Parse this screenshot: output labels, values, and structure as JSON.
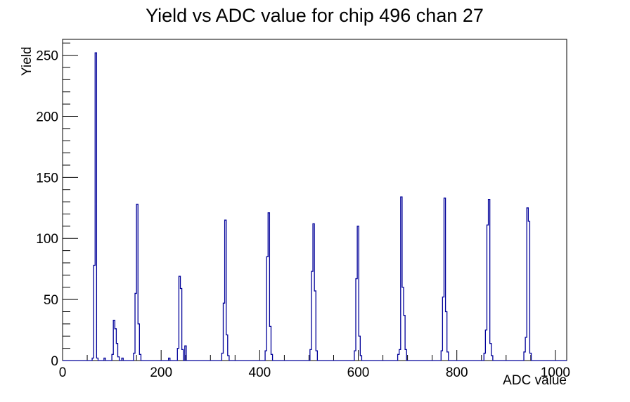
{
  "page": {
    "background": "#ffffff"
  },
  "chart_data": {
    "type": "histogram",
    "title": "Yield vs ADC value for chip 496 chan 27",
    "xlabel": "ADC value",
    "ylabel": "Yield",
    "xlim": [
      0,
      1023
    ],
    "ylim": [
      0,
      263
    ],
    "x_major_ticks": [
      0,
      200,
      400,
      600,
      800,
      1000
    ],
    "x_tick_labels": [
      "0",
      "200",
      "400",
      "600",
      "800",
      "1000"
    ],
    "x_minor_step": 50,
    "y_major_ticks": [
      0,
      50,
      100,
      150,
      200,
      250
    ],
    "y_tick_labels": [
      "0",
      "50",
      "100",
      "150",
      "200",
      "250"
    ],
    "y_minor_step": 10,
    "grid": false,
    "legend": "none",
    "line_color": "#000099",
    "axis_color": "#000000",
    "bin_width_adc": 3,
    "peaks": [
      {
        "start": 60,
        "heights": [
          2,
          78,
          252,
          2
        ]
      },
      {
        "start": 84,
        "heights": [
          2
        ]
      },
      {
        "start": 100,
        "heights": [
          5,
          33,
          26,
          14,
          3
        ]
      },
      {
        "start": 120,
        "heights": [
          2
        ]
      },
      {
        "start": 144,
        "heights": [
          6,
          55,
          128,
          30,
          5
        ]
      },
      {
        "start": 215,
        "heights": [
          2
        ]
      },
      {
        "start": 233,
        "heights": [
          10,
          69,
          59,
          9
        ]
      },
      {
        "start": 248,
        "heights": [
          12
        ]
      },
      {
        "start": 323,
        "heights": [
          6,
          47,
          115,
          21,
          4
        ]
      },
      {
        "start": 411,
        "heights": [
          8,
          85,
          121,
          28,
          5
        ]
      },
      {
        "start": 502,
        "heights": [
          9,
          73,
          112,
          57,
          8
        ]
      },
      {
        "start": 592,
        "heights": [
          8,
          67,
          110,
          20,
          4
        ]
      },
      {
        "start": 680,
        "heights": [
          5,
          9,
          134,
          60,
          37,
          9
        ]
      },
      {
        "start": 768,
        "heights": [
          8,
          52,
          133,
          40,
          7
        ]
      },
      {
        "start": 855,
        "heights": [
          6,
          25,
          111,
          132,
          14,
          4
        ]
      },
      {
        "start": 936,
        "heights": [
          7,
          19,
          125,
          114,
          6
        ]
      }
    ]
  }
}
